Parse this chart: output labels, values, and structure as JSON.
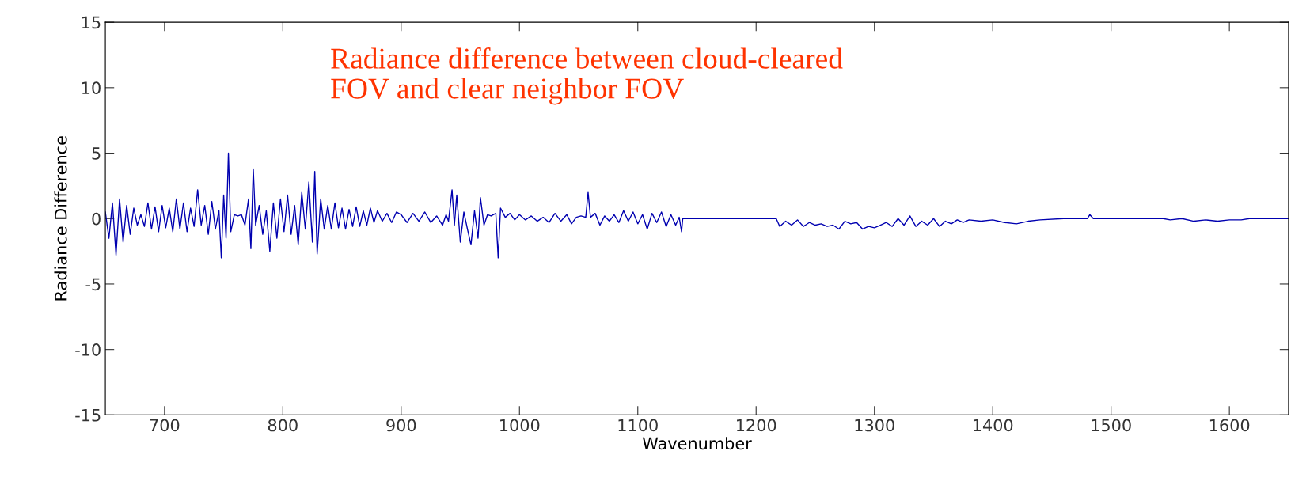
{
  "chart_data": {
    "type": "line",
    "xlabel": "Wavenumber",
    "ylabel": "Radiance Difference",
    "annotations": [
      "Radiance difference between cloud-cleared\nFOV and clear neighbor FOV"
    ],
    "xlim": [
      650,
      1650
    ],
    "xticks": [
      700,
      800,
      900,
      1000,
      1100,
      1200,
      1300,
      1400,
      1500,
      1600
    ],
    "ylim": [
      -15,
      15
    ],
    "yticks": [
      -15,
      -10,
      -5,
      0,
      5,
      10,
      15
    ],
    "grid": false,
    "legend": false,
    "marker": "none",
    "line_style": "solid",
    "series": [
      {
        "color": "#0000b0",
        "x": [
          650,
          653,
          656,
          659,
          662,
          665,
          668,
          671,
          674,
          677,
          680,
          683,
          686,
          689,
          692,
          695,
          698,
          701,
          704,
          707,
          710,
          713,
          716,
          719,
          722,
          725,
          728,
          731,
          734,
          737,
          740,
          743,
          746,
          748,
          750,
          752,
          754,
          756,
          759,
          762,
          765,
          768,
          771,
          773,
          775,
          777,
          780,
          783,
          786,
          789,
          792,
          795,
          798,
          801,
          804,
          807,
          810,
          813,
          816,
          819,
          822,
          825,
          827,
          829,
          832,
          835,
          838,
          841,
          844,
          847,
          850,
          853,
          856,
          859,
          862,
          865,
          868,
          871,
          874,
          877,
          880,
          884,
          888,
          892,
          896,
          900,
          905,
          910,
          915,
          920,
          925,
          930,
          935,
          938,
          940,
          943,
          945,
          947,
          950,
          953,
          956,
          959,
          962,
          965,
          967,
          970,
          973,
          976,
          980,
          982,
          984,
          988,
          992,
          996,
          1000,
          1005,
          1010,
          1015,
          1020,
          1025,
          1030,
          1035,
          1040,
          1044,
          1048,
          1052,
          1056,
          1058,
          1060,
          1064,
          1068,
          1072,
          1076,
          1080,
          1084,
          1088,
          1092,
          1096,
          1100,
          1104,
          1108,
          1112,
          1116,
          1120,
          1124,
          1128,
          1132,
          1135,
          1137,
          1138,
          1175,
          1217,
          1220,
          1225,
          1230,
          1235,
          1240,
          1245,
          1250,
          1255,
          1260,
          1265,
          1270,
          1275,
          1280,
          1285,
          1290,
          1295,
          1300,
          1305,
          1310,
          1315,
          1320,
          1325,
          1330,
          1335,
          1340,
          1345,
          1350,
          1355,
          1360,
          1365,
          1370,
          1375,
          1380,
          1390,
          1400,
          1410,
          1420,
          1430,
          1440,
          1460,
          1480,
          1482,
          1485,
          1544,
          1550,
          1560,
          1570,
          1580,
          1590,
          1600,
          1610,
          1617,
          1650
        ],
        "values": [
          0.5,
          -1.5,
          1.2,
          -2.8,
          1.5,
          -1.8,
          1.0,
          -1.2,
          0.8,
          -0.5,
          0.3,
          -0.6,
          1.2,
          -0.8,
          0.9,
          -1.0,
          1.0,
          -0.7,
          0.8,
          -1.0,
          1.5,
          -0.8,
          1.2,
          -1.0,
          0.8,
          -0.6,
          2.2,
          -0.5,
          1.0,
          -1.2,
          1.3,
          -0.8,
          0.6,
          -3.0,
          1.8,
          -1.5,
          5.0,
          -1.0,
          0.3,
          0.2,
          0.3,
          -0.5,
          1.5,
          -2.3,
          3.8,
          -0.5,
          1.0,
          -1.2,
          0.6,
          -2.5,
          1.2,
          -1.5,
          1.5,
          -1.0,
          1.8,
          -1.2,
          1.0,
          -2.0,
          2.0,
          -0.8,
          2.8,
          -1.8,
          3.6,
          -2.7,
          1.5,
          -0.8,
          1.0,
          -0.8,
          1.2,
          -0.7,
          0.8,
          -0.8,
          0.7,
          -0.6,
          0.9,
          -0.6,
          0.6,
          -0.5,
          0.8,
          -0.3,
          0.6,
          -0.2,
          0.4,
          -0.3,
          0.5,
          0.3,
          -0.3,
          0.4,
          -0.2,
          0.5,
          -0.3,
          0.2,
          -0.5,
          0.3,
          -0.2,
          2.2,
          -0.5,
          1.8,
          -1.8,
          0.5,
          -0.8,
          -2.0,
          0.6,
          -1.5,
          1.6,
          -0.5,
          0.3,
          0.2,
          0.4,
          -3.0,
          0.8,
          0.1,
          0.4,
          -0.1,
          0.3,
          -0.1,
          0.2,
          -0.2,
          0.1,
          -0.3,
          0.4,
          -0.2,
          0.3,
          -0.4,
          0.1,
          0.2,
          0.1,
          2.0,
          0.1,
          0.4,
          -0.5,
          0.2,
          -0.2,
          0.3,
          -0.3,
          0.6,
          -0.2,
          0.5,
          -0.4,
          0.3,
          -0.8,
          0.4,
          -0.3,
          0.5,
          -0.6,
          0.3,
          -0.5,
          0.1,
          -1.0,
          0.0,
          0.0,
          0.0,
          -0.6,
          -0.2,
          -0.5,
          -0.1,
          -0.6,
          -0.3,
          -0.5,
          -0.4,
          -0.6,
          -0.5,
          -0.8,
          -0.2,
          -0.4,
          -0.3,
          -0.8,
          -0.6,
          -0.7,
          -0.5,
          -0.3,
          -0.6,
          0.0,
          -0.5,
          0.2,
          -0.6,
          -0.2,
          -0.5,
          0.0,
          -0.6,
          -0.2,
          -0.4,
          -0.1,
          -0.3,
          -0.1,
          -0.2,
          -0.1,
          -0.3,
          -0.4,
          -0.2,
          -0.1,
          0.0,
          0.0,
          0.3,
          0.0,
          0.0,
          -0.1,
          0.0,
          -0.2,
          -0.1,
          -0.2,
          -0.1,
          -0.1,
          0.0,
          0.0
        ]
      }
    ]
  }
}
